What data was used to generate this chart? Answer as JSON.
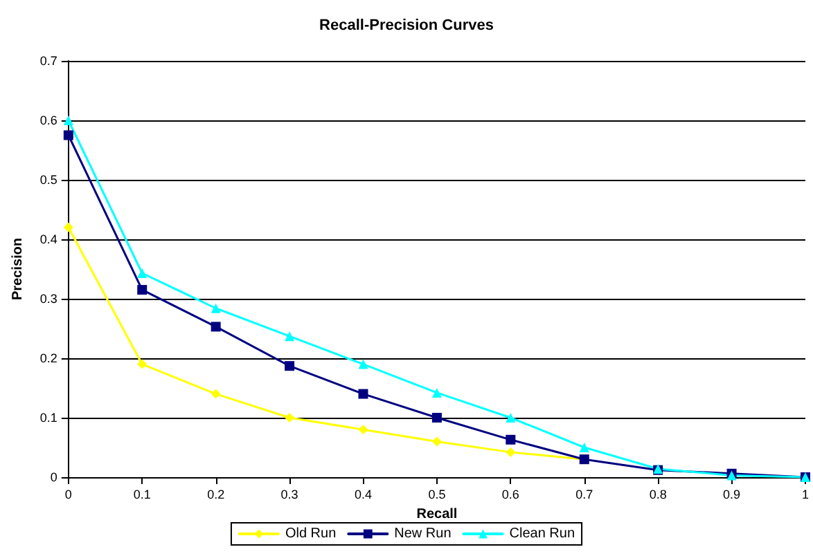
{
  "chart_data": {
    "type": "line",
    "title": "Recall-Precision Curves",
    "xlabel": "Recall",
    "ylabel": "Precision",
    "x": [
      0,
      0.1,
      0.2,
      0.3,
      0.4,
      0.5,
      0.6,
      0.7,
      0.8,
      0.9,
      1
    ],
    "series": [
      {
        "name": "Old Run",
        "color": "#ffff00",
        "marker": "diamond",
        "values": [
          0.42,
          0.19,
          0.14,
          0.1,
          0.08,
          0.06,
          0.042,
          0.03,
          null,
          null,
          null
        ]
      },
      {
        "name": "New Run",
        "color": "#000080",
        "marker": "square",
        "values": [
          0.575,
          0.315,
          0.253,
          0.187,
          0.14,
          0.1,
          0.063,
          0.03,
          0.012,
          0.006,
          0
        ]
      },
      {
        "name": "Clean Run",
        "color": "#00ffff",
        "marker": "triangle",
        "values": [
          0.6,
          0.343,
          0.284,
          0.237,
          0.19,
          0.142,
          0.1,
          0.05,
          0.014,
          0.003,
          0
        ]
      }
    ],
    "xlim": [
      0,
      1
    ],
    "xticks": [
      0,
      0.1,
      0.2,
      0.3,
      0.4,
      0.5,
      0.6,
      0.7,
      0.8,
      0.9,
      1
    ],
    "ylim": [
      0,
      0.7
    ],
    "yticks": [
      0,
      0.1,
      0.2,
      0.3,
      0.4,
      0.5,
      0.6,
      0.7
    ],
    "grid": "y",
    "legend": "bottom",
    "line_style": "solid"
  }
}
